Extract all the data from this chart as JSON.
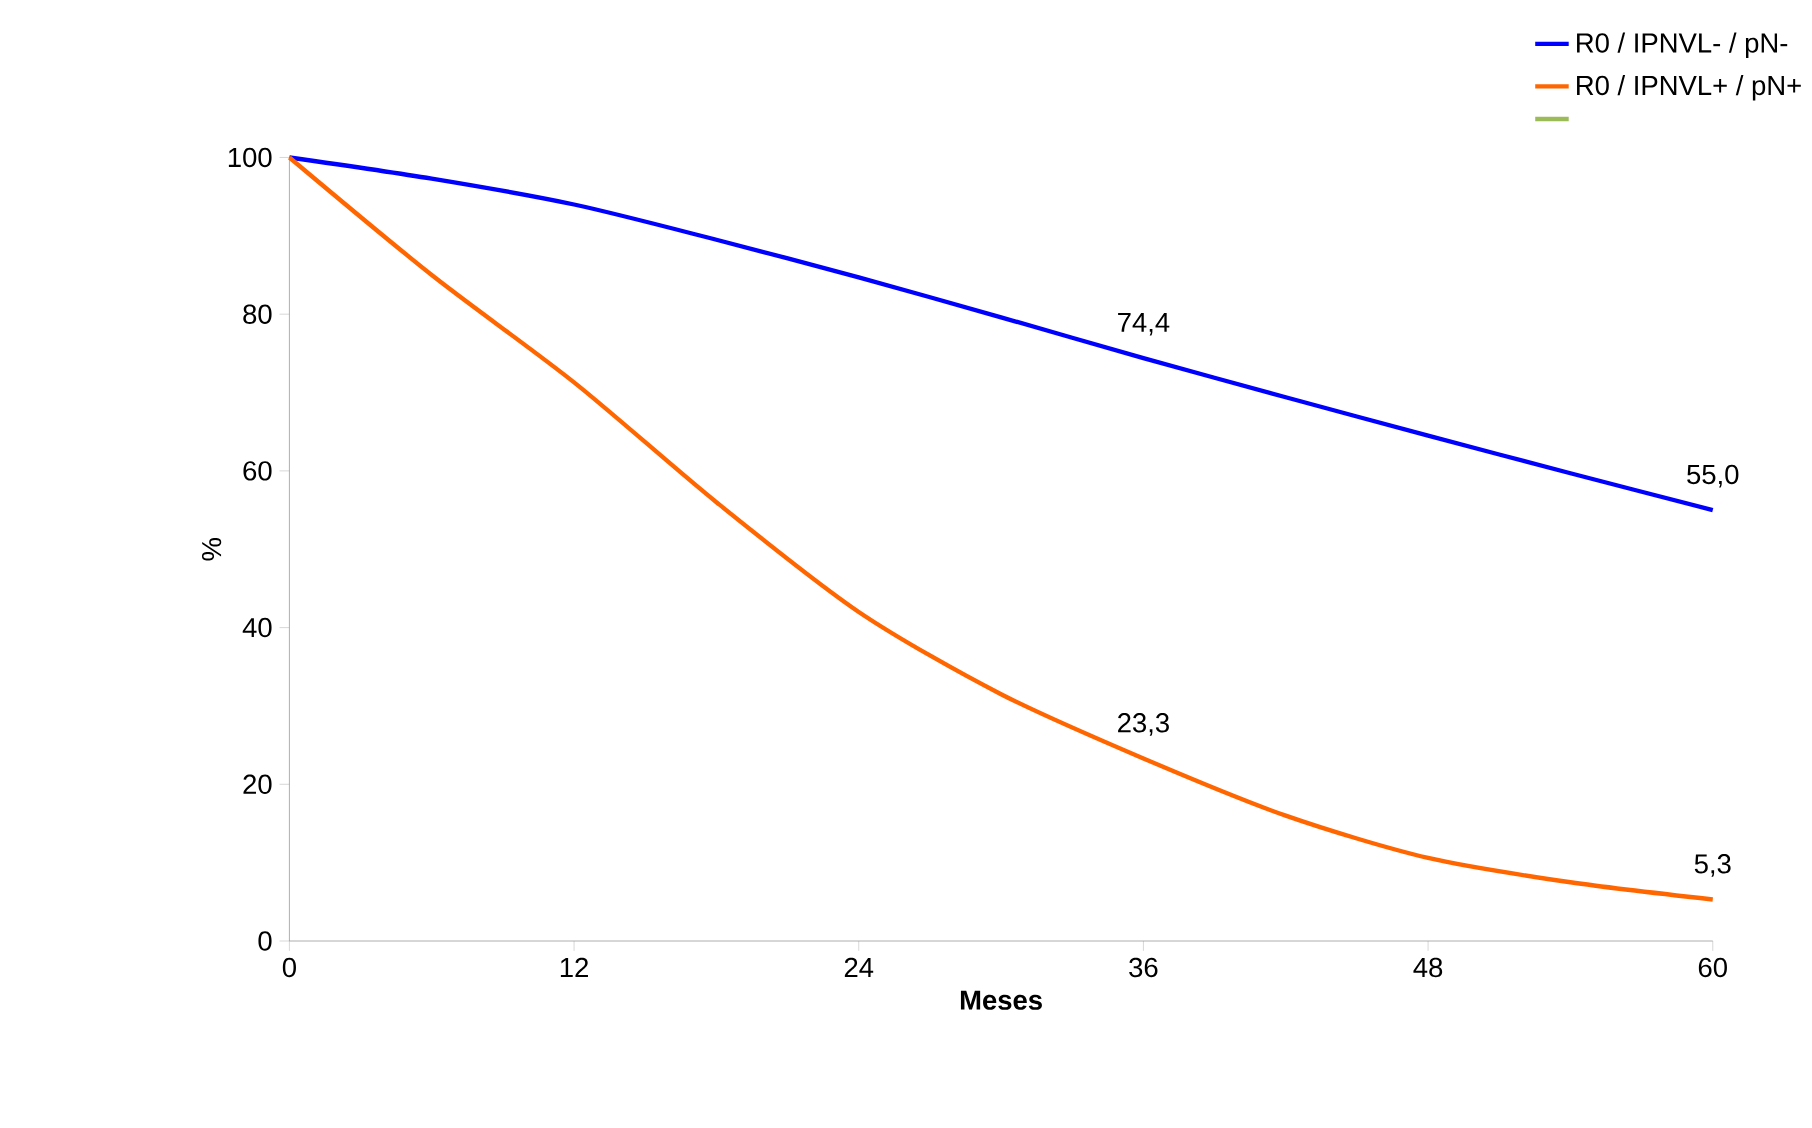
{
  "chart_data": {
    "type": "line",
    "xlabel": "Meses",
    "ylabel": "%",
    "x": [
      0,
      6,
      12,
      18,
      24,
      30,
      36,
      42,
      48,
      54,
      60
    ],
    "series": [
      {
        "name": "R0 / IPNVL- / pN-",
        "color": "#0000ff",
        "values": [
          100,
          97.3,
          94,
          89.5,
          84.7,
          79.6,
          74.4,
          69.4,
          64.5,
          59.7,
          55.0
        ],
        "value_labels": [
          null,
          null,
          null,
          null,
          null,
          null,
          "74,4",
          null,
          null,
          null,
          "55,0"
        ]
      },
      {
        "name": "R0 / IPNVL+ / pN+",
        "color": "#ff6600",
        "values": [
          100,
          85,
          71.3,
          56,
          42,
          31.5,
          23.3,
          16,
          10.6,
          7.5,
          5.3
        ],
        "value_labels": [
          null,
          null,
          null,
          null,
          null,
          null,
          "23,3",
          null,
          null,
          null,
          "5,3"
        ]
      },
      {
        "color": "#9bbb59",
        "values": [
          null,
          null,
          null,
          null,
          null,
          null,
          null,
          null,
          null,
          null,
          null
        ]
      }
    ],
    "xlim": [
      0,
      60
    ],
    "xticks": [
      0,
      12,
      24,
      36,
      48,
      60
    ],
    "ylim": [
      0,
      100
    ],
    "yticks": [
      0,
      20,
      40,
      60,
      80,
      100
    ],
    "legend": "top right",
    "grid": false,
    "marker": "none",
    "line_style": "solid"
  }
}
